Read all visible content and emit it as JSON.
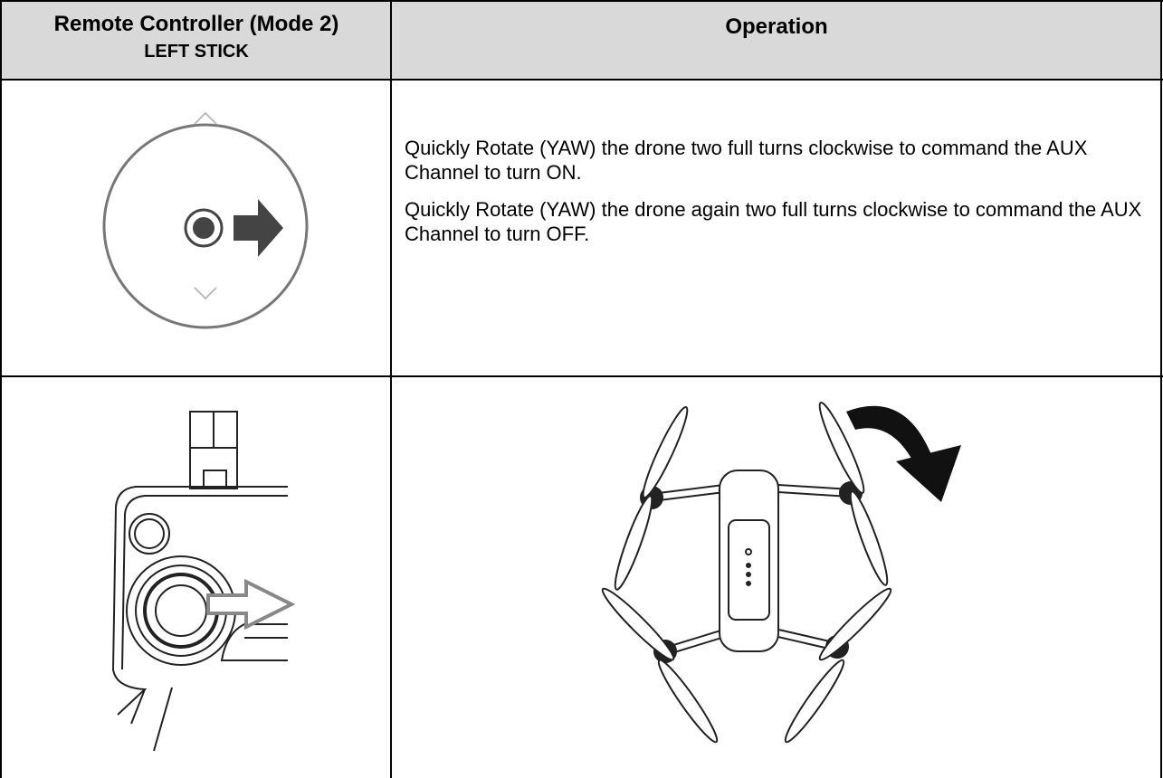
{
  "table": {
    "header": {
      "col1_title": "Remote Controller (Mode 2)",
      "col1_subtitle": "LEFT STICK",
      "col2": "Operation"
    },
    "rows": [
      {
        "text": [
          "Quickly Rotate (YAW) the drone two full turns clockwise to command the AUX Channel to turn ON.",
          "Quickly Rotate (YAW) the drone again two full turns clockwise to command the AUX Channel to turn OFF."
        ]
      }
    ]
  }
}
